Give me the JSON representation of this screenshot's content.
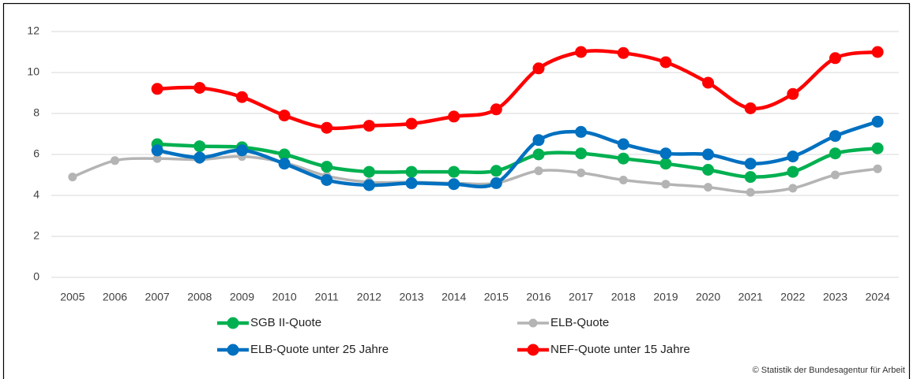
{
  "chart_data": {
    "type": "line",
    "categories": [
      "2005",
      "2006",
      "2007",
      "2008",
      "2009",
      "2010",
      "2011",
      "2012",
      "2013",
      "2014",
      "2015",
      "2016",
      "2017",
      "2018",
      "2019",
      "2020",
      "2021",
      "2022",
      "2023",
      "2024"
    ],
    "series": [
      {
        "name": "SGB II-Quote",
        "color": "#00b050",
        "values": [
          null,
          null,
          6.5,
          6.4,
          6.35,
          6.0,
          5.4,
          5.15,
          5.15,
          5.15,
          5.2,
          6.0,
          6.05,
          5.8,
          5.55,
          5.25,
          4.9,
          5.15,
          6.05,
          6.3
        ]
      },
      {
        "name": "ELB-Quote",
        "color": "#b4b4b4",
        "values": [
          4.9,
          5.7,
          5.8,
          5.75,
          5.9,
          5.6,
          4.95,
          4.65,
          4.65,
          4.6,
          4.6,
          5.2,
          5.1,
          4.75,
          4.55,
          4.4,
          4.15,
          4.35,
          5.0,
          5.3
        ]
      },
      {
        "name": "ELB-Quote unter 25 Jahre",
        "color": "#0070c0",
        "values": [
          null,
          null,
          6.2,
          5.85,
          6.2,
          5.55,
          4.75,
          4.5,
          4.6,
          4.55,
          4.6,
          6.7,
          7.1,
          6.5,
          6.05,
          6.0,
          5.55,
          5.9,
          6.9,
          7.6
        ]
      },
      {
        "name": "NEF-Quote unter 15 Jahre",
        "color": "#ff0000",
        "values": [
          null,
          null,
          9.2,
          9.25,
          8.8,
          7.9,
          7.3,
          7.4,
          7.5,
          7.85,
          8.2,
          10.2,
          11.0,
          10.95,
          10.5,
          9.5,
          8.25,
          8.95,
          10.7,
          11.0
        ]
      }
    ],
    "ylim": [
      0,
      12
    ],
    "yticks": [
      0,
      2,
      4,
      6,
      8,
      10,
      12
    ],
    "grid": true,
    "legend": "bottom",
    "source": "© Statistik der Bundesagentur für Arbeit"
  }
}
